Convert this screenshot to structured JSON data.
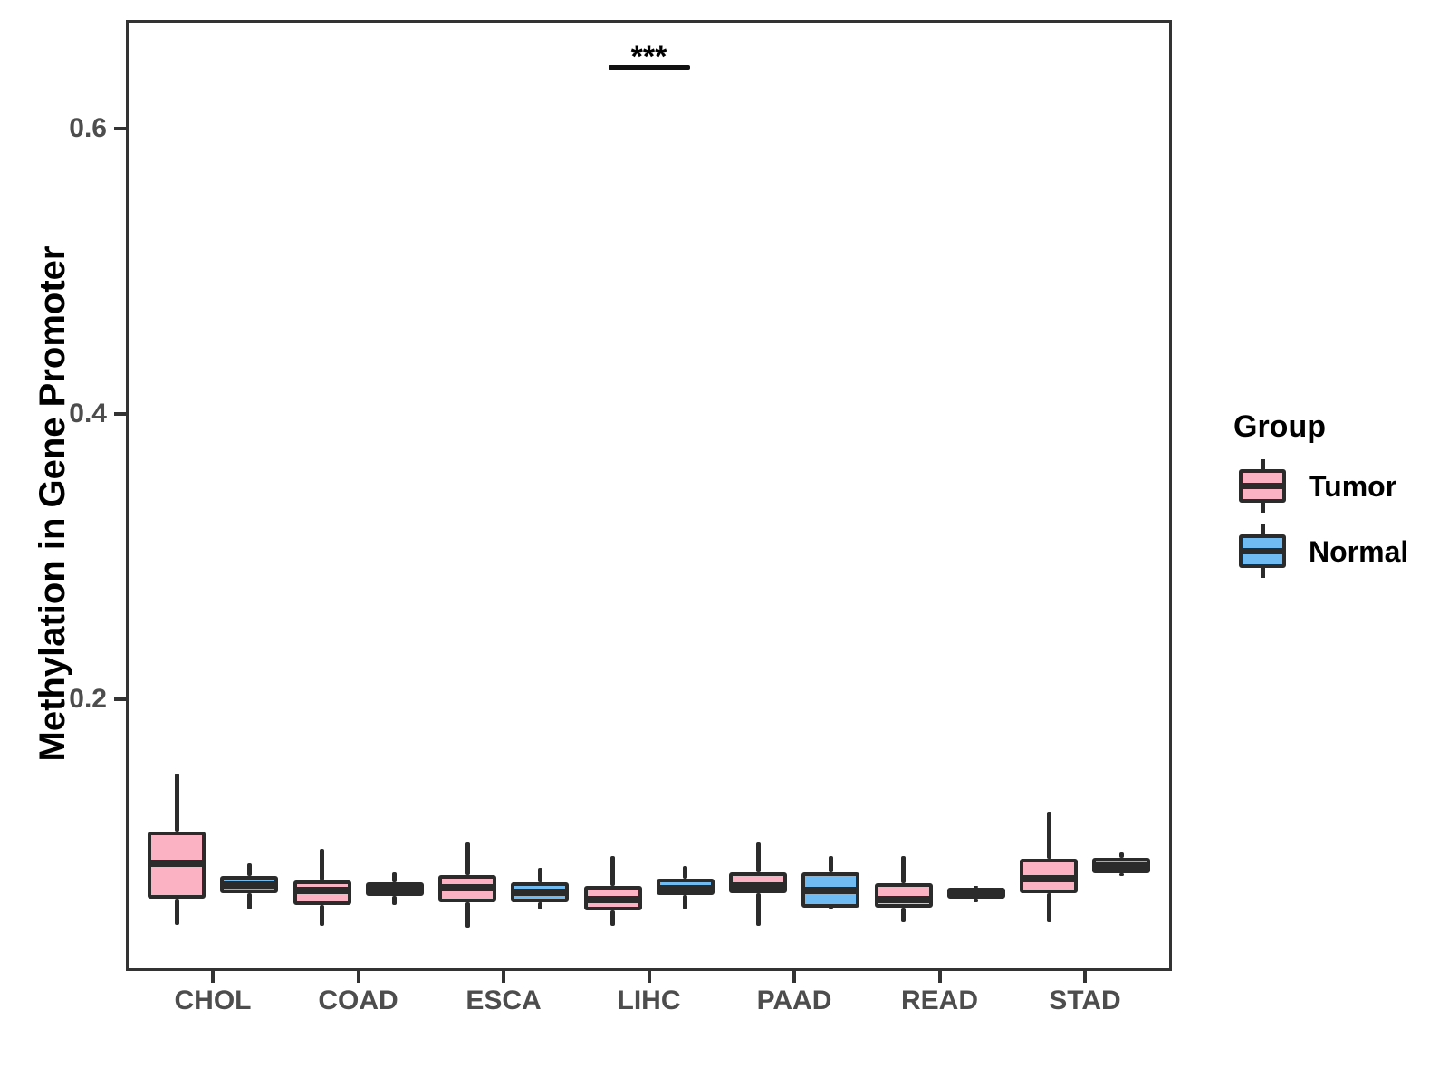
{
  "chart_data": {
    "type": "grouped_boxplot",
    "title": "",
    "xlabel": "",
    "ylabel": "Methylation in Gene Promoter",
    "categories": [
      "CHOL",
      "COAD",
      "ESCA",
      "LIHC",
      "PAAD",
      "READ",
      "STAD"
    ],
    "legend_title": "Group",
    "groups": [
      "Tumor",
      "Normal"
    ],
    "colors": {
      "Tumor": "#FBB3C3",
      "Normal": "#6FBBF2",
      "stroke": "#2B2B2B"
    },
    "y_ticks": [
      0.2,
      0.4,
      0.6
    ],
    "y_tick_labels": [
      "0.2",
      "0.4",
      "0.6"
    ],
    "ylim_shown": [
      0.011,
      0.675
    ],
    "grid": "off",
    "legend_position": "right",
    "significance": [
      {
        "category": "LIHC",
        "label": "***"
      }
    ],
    "series": [
      {
        "name": "Tumor",
        "boxes": [
          {
            "category": "CHOL",
            "low": 0.042,
            "q1": 0.06,
            "median": 0.085,
            "q3": 0.107,
            "high": 0.148
          },
          {
            "category": "COAD",
            "low": 0.041,
            "q1": 0.056,
            "median": 0.066,
            "q3": 0.073,
            "high": 0.095
          },
          {
            "category": "ESCA",
            "low": 0.04,
            "q1": 0.058,
            "median": 0.068,
            "q3": 0.077,
            "high": 0.1
          },
          {
            "category": "LIHC",
            "low": 0.041,
            "q1": 0.052,
            "median": 0.06,
            "q3": 0.069,
            "high": 0.09
          },
          {
            "category": "PAAD",
            "low": 0.041,
            "q1": 0.064,
            "median": 0.069,
            "q3": 0.079,
            "high": 0.1
          },
          {
            "category": "READ",
            "low": 0.044,
            "q1": 0.054,
            "median": 0.06,
            "q3": 0.071,
            "high": 0.09
          },
          {
            "category": "STAD",
            "low": 0.044,
            "q1": 0.064,
            "median": 0.074,
            "q3": 0.088,
            "high": 0.121
          }
        ]
      },
      {
        "name": "Normal",
        "boxes": [
          {
            "category": "CHOL",
            "low": 0.053,
            "q1": 0.064,
            "median": 0.07,
            "q3": 0.076,
            "high": 0.085
          },
          {
            "category": "COAD",
            "low": 0.056,
            "q1": 0.062,
            "median": 0.067,
            "q3": 0.072,
            "high": 0.079
          },
          {
            "category": "ESCA",
            "low": 0.053,
            "q1": 0.058,
            "median": 0.065,
            "q3": 0.072,
            "high": 0.082
          },
          {
            "category": "LIHC",
            "low": 0.053,
            "q1": 0.063,
            "median": 0.067,
            "q3": 0.074,
            "high": 0.083
          },
          {
            "category": "PAAD",
            "low": 0.053,
            "q1": 0.054,
            "median": 0.066,
            "q3": 0.079,
            "high": 0.09
          },
          {
            "category": "READ",
            "low": 0.058,
            "q1": 0.06,
            "median": 0.064,
            "q3": 0.068,
            "high": 0.069
          },
          {
            "category": "STAD",
            "low": 0.076,
            "q1": 0.078,
            "median": 0.083,
            "q3": 0.089,
            "high": 0.093
          }
        ]
      }
    ]
  }
}
